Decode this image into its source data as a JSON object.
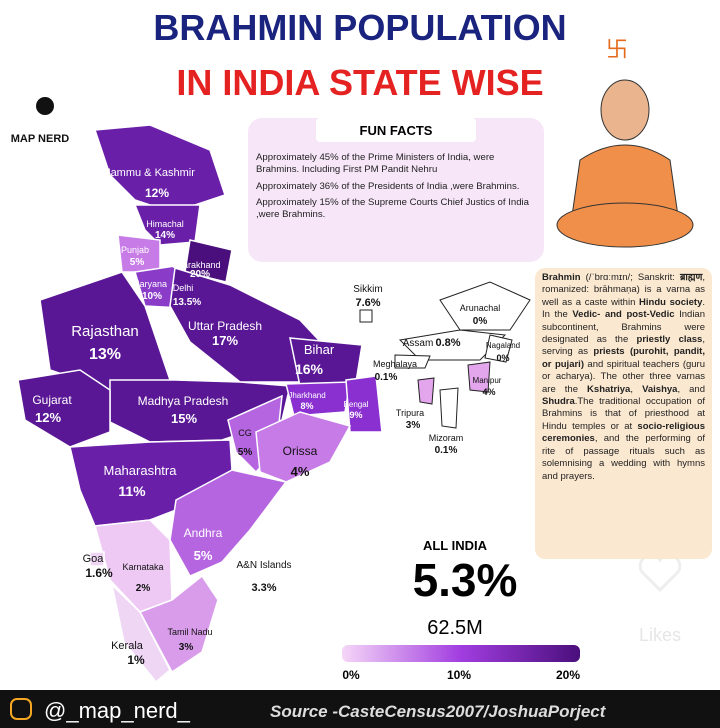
{
  "title_line1": "BRAHMIN POPULATION",
  "title_line2": "IN INDIA STATE WISE",
  "brand": "MAP NERD",
  "fun_facts": {
    "heading": "FUN FACTS",
    "items": [
      "Approximately 45% of the Prime Ministers of India, were Brahmins. Including First PM Pandit Nehru",
      "Approximately 36% of the Presidents of India ,were Brahmins.",
      "Approximately 15% of the Supreme Courts Chief Justics of India ,were Brahmins."
    ]
  },
  "regions": [
    {
      "name": "Jammu & Kashmir",
      "value": "12%"
    },
    {
      "name": "Himachal",
      "value": "14%"
    },
    {
      "name": "Punjab",
      "value": "5%"
    },
    {
      "name": "Uttarakhand",
      "value": "20%"
    },
    {
      "name": "Haryana",
      "value": "10%"
    },
    {
      "name": "Delhi",
      "value": "13.5%"
    },
    {
      "name": "Rajasthan",
      "value": "13%"
    },
    {
      "name": "Uttar Pradesh",
      "value": "17%"
    },
    {
      "name": "Bihar",
      "value": "16%"
    },
    {
      "name": "Sikkim",
      "value": "7.6%"
    },
    {
      "name": "Arunachal",
      "value": "0%"
    },
    {
      "name": "Assam",
      "value": "0.8%"
    },
    {
      "name": "Meghalaya",
      "value": "0.1%"
    },
    {
      "name": "Nagaland",
      "value": "0%"
    },
    {
      "name": "Manipur",
      "value": "4%"
    },
    {
      "name": "Tripura",
      "value": "3%"
    },
    {
      "name": "Mizoram",
      "value": "0.1%"
    },
    {
      "name": "Jharkhand",
      "value": "8%"
    },
    {
      "name": "Bengal",
      "value": "9%"
    },
    {
      "name": "Gujarat",
      "value": "12%"
    },
    {
      "name": "Madhya Pradesh",
      "value": "15%"
    },
    {
      "name": "CG",
      "value": "5%"
    },
    {
      "name": "Orissa",
      "value": "4%"
    },
    {
      "name": "Maharashtra",
      "value": "11%"
    },
    {
      "name": "Andhra",
      "value": "5%"
    },
    {
      "name": "Goa",
      "value": "1.6%"
    },
    {
      "name": "Karnataka",
      "value": "2%"
    },
    {
      "name": "A&N Islands",
      "value": "3.3%"
    },
    {
      "name": "Tamil Nadu",
      "value": "3%"
    },
    {
      "name": "Kerala",
      "value": "1%"
    }
  ],
  "description": [
    {
      "text": "Brahmin",
      "bold": true
    },
    {
      "text": " (/ˈbrɑːmɪn/; Sanskrit: ",
      "bold": false
    },
    {
      "text": "ब्राह्मण",
      "bold": true
    },
    {
      "text": ", romanized: brāhmaṇa) is a varna as well as a caste within ",
      "bold": false
    },
    {
      "text": "Hindu society",
      "bold": true
    },
    {
      "text": ". In the ",
      "bold": false
    },
    {
      "text": "Vedic- and post-Vedic",
      "bold": true
    },
    {
      "text": " Indian subcontinent, Brahmins were designated as the ",
      "bold": false
    },
    {
      "text": "priestly class",
      "bold": true
    },
    {
      "text": ", serving as ",
      "bold": false
    },
    {
      "text": "priests (purohit, pandit, or pujari)",
      "bold": true
    },
    {
      "text": " and spiritual teachers (guru or acharya). The other three varnas are the ",
      "bold": false
    },
    {
      "text": "Kshatriya",
      "bold": true
    },
    {
      "text": ", ",
      "bold": false
    },
    {
      "text": "Vaishya",
      "bold": true
    },
    {
      "text": ", and ",
      "bold": false
    },
    {
      "text": "Shudra",
      "bold": true
    },
    {
      "text": ".The traditional occupation of Brahmins is that of priesthood at Hindu temples or at ",
      "bold": false
    },
    {
      "text": "socio-religious ceremonies",
      "bold": true
    },
    {
      "text": ", and the performing of rite of passage rituals such as solemnising a wedding with hymns and prayers.",
      "bold": false
    }
  ],
  "all_india": {
    "label": "ALL INDIA",
    "percent": "5.3%",
    "count": "62.5M"
  },
  "legend": {
    "ticks": [
      "0%",
      "10%",
      "20%"
    ]
  },
  "footer": {
    "handle": "@_map_nerd_",
    "source": "Source -CasteCensus2007/JoshuaPorject"
  },
  "likes": "Likes"
}
